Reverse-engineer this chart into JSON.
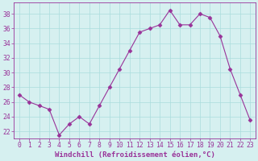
{
  "x": [
    0,
    1,
    2,
    3,
    4,
    5,
    6,
    7,
    8,
    9,
    10,
    11,
    12,
    13,
    14,
    15,
    16,
    17,
    18,
    19,
    20,
    21,
    22,
    23
  ],
  "y": [
    27,
    26,
    25.5,
    25,
    21.5,
    23,
    24,
    23,
    25.5,
    28,
    30.5,
    33,
    35.5,
    36,
    36.5,
    38.5,
    36.5,
    36.5,
    38,
    37.5,
    35,
    30.5,
    27,
    23.5
  ],
  "line_color": "#993399",
  "marker": "D",
  "marker_size": 2.5,
  "bg_color": "#d6f0f0",
  "grid_color": "#aadddd",
  "xlabel": "Windchill (Refroidissement éolien,°C)",
  "xlabel_color": "#993399",
  "tick_color": "#993399",
  "ylim": [
    21,
    39.5
  ],
  "yticks": [
    22,
    24,
    26,
    28,
    30,
    32,
    34,
    36,
    38
  ],
  "xticks": [
    0,
    1,
    2,
    3,
    4,
    5,
    6,
    7,
    8,
    9,
    10,
    11,
    12,
    13,
    14,
    15,
    16,
    17,
    18,
    19,
    20,
    21,
    22,
    23
  ],
  "xlim": [
    -0.5,
    23.5
  ],
  "font_size": 5.8,
  "xlabel_fontsize": 6.5
}
